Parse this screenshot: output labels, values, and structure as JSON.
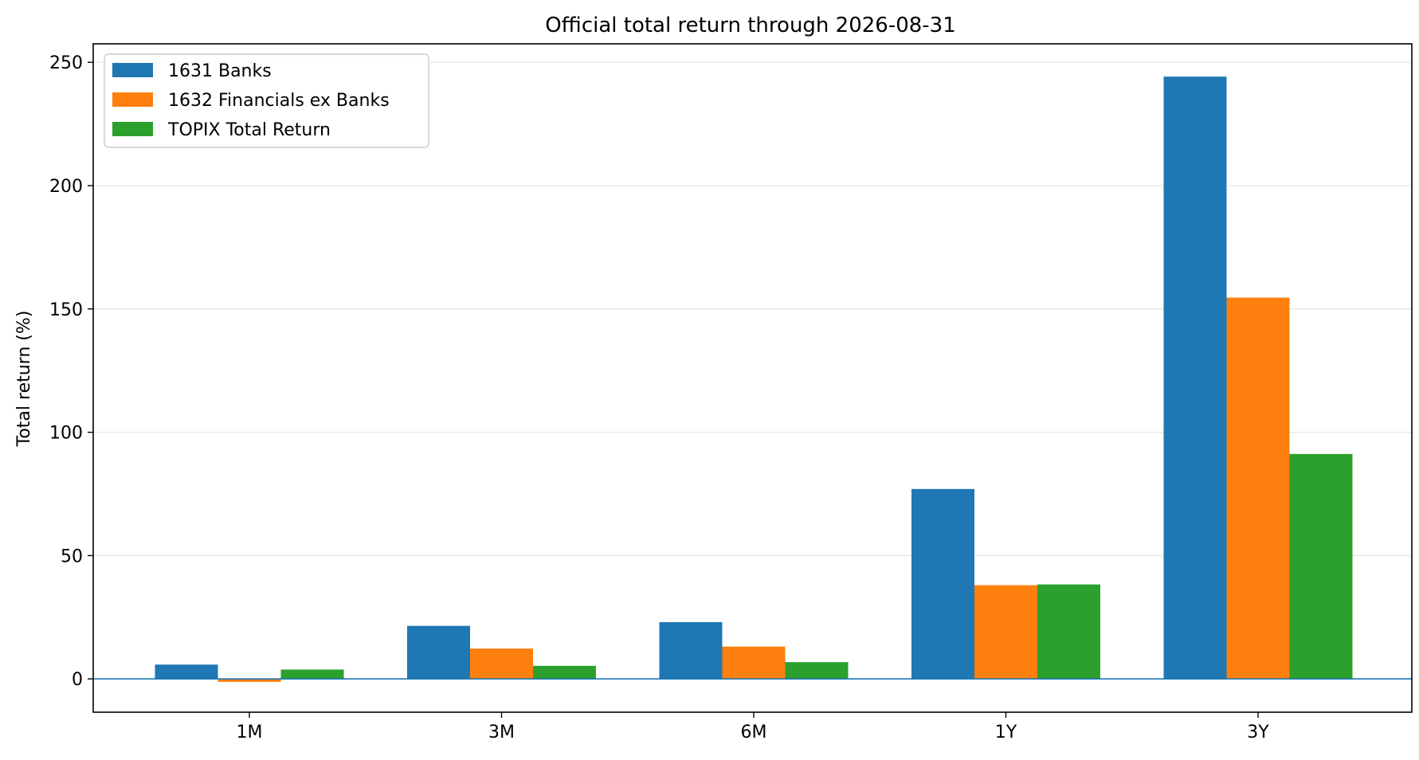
{
  "chart_data": {
    "type": "bar",
    "title": "Official total return through 2026-08-31",
    "xlabel": "",
    "ylabel": "Total return (%)",
    "categories": [
      "1M",
      "3M",
      "6M",
      "1Y",
      "3Y"
    ],
    "series": [
      {
        "name": "1631 Banks",
        "color": "#1f77b4",
        "values": [
          5.8,
          21.5,
          23.0,
          77.0,
          244.2
        ]
      },
      {
        "name": "1632 Financials ex Banks",
        "color": "#ff7f0e",
        "values": [
          -1.2,
          12.3,
          13.1,
          38.0,
          154.6
        ]
      },
      {
        "name": "TOPIX Total Return",
        "color": "#2ca02c",
        "values": [
          3.8,
          5.3,
          6.8,
          38.3,
          91.2
        ]
      }
    ],
    "ylim": [
      -13.5,
      257.5
    ],
    "yticks": [
      0,
      50,
      100,
      150,
      200,
      250
    ],
    "grid": "horizontal",
    "zero_line": true,
    "zero_line_color": "#1f77b4",
    "legend_position": "top-left"
  }
}
